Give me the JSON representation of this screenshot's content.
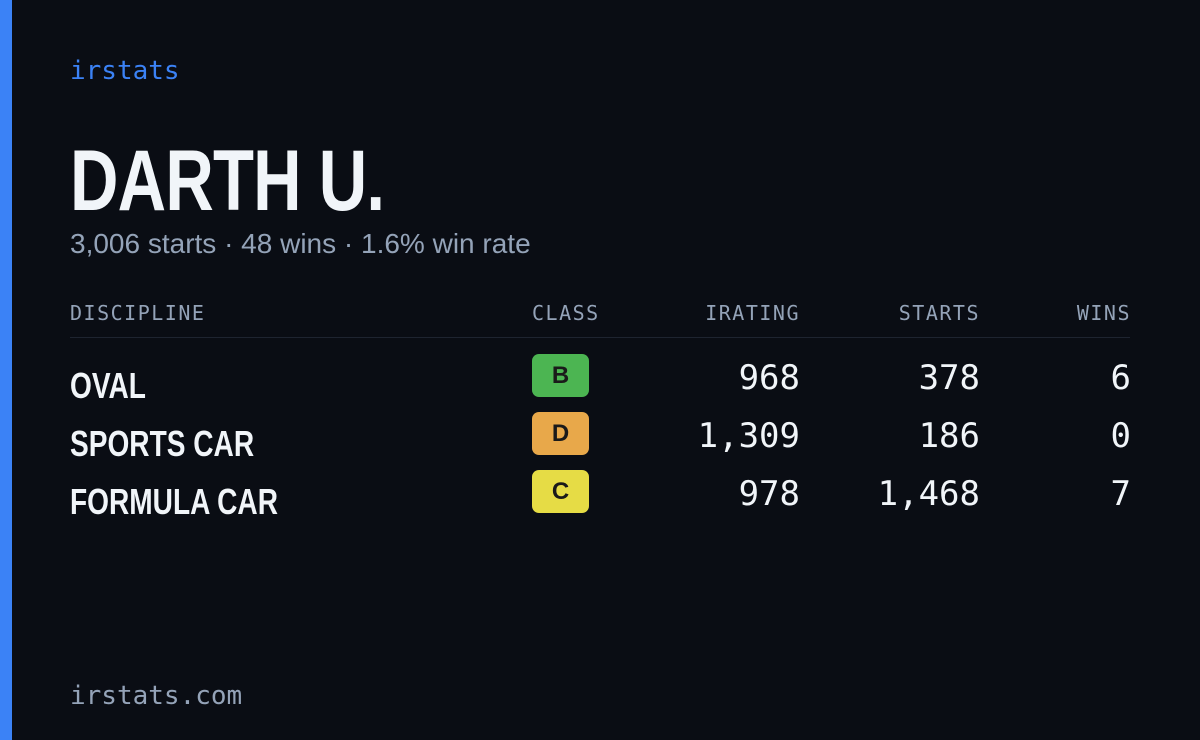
{
  "brand": "irstats",
  "profile": {
    "name": "DARTH U.",
    "summary": "3,006 starts · 48 wins · 1.6% win rate"
  },
  "table": {
    "headers": [
      "DISCIPLINE",
      "CLASS",
      "IRATING",
      "STARTS",
      "WINS"
    ],
    "rows": [
      [
        "OVAL",
        "B",
        "968",
        "378",
        "6"
      ],
      [
        "SPORTS CAR",
        "D",
        "1,309",
        "186",
        "0"
      ],
      [
        "FORMULA CAR",
        "C",
        "978",
        "1,468",
        "7"
      ]
    ]
  },
  "class_colors": {
    "B": "#4cb552",
    "D": "#e8a84a",
    "C": "#e6dc45"
  },
  "footer": "irstats.com"
}
